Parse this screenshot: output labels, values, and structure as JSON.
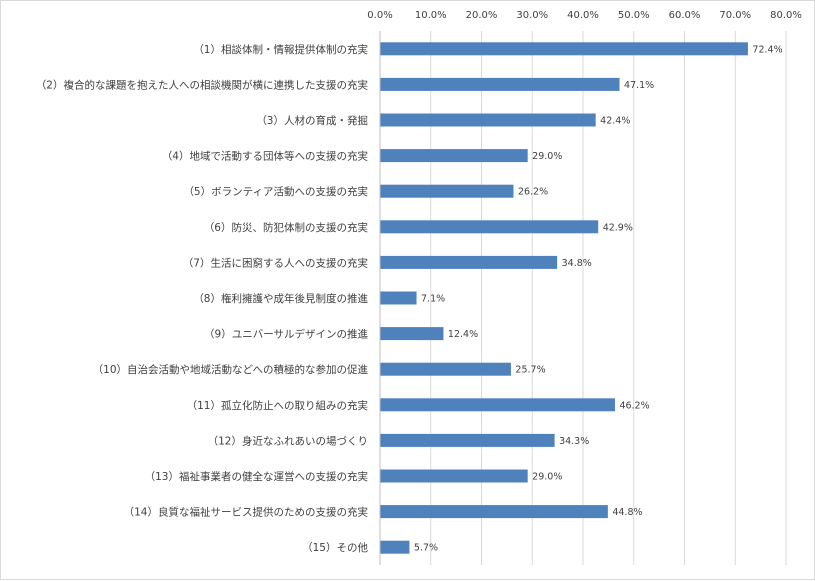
{
  "chart_data": {
    "type": "bar",
    "orientation": "horizontal",
    "categories": [
      "（1）相談体制・情報提供体制の充実",
      "（2）複合的な課題を抱えた人への相談機関が横に連携した支援の充実",
      "（3）人材の育成・発掘",
      "（4）地域で活動する団体等への支援の充実",
      "（5）ボランティア活動への支援の充実",
      "（6）防災、防犯体制の支援の充実",
      "（7）生活に困窮する人への支援の充実",
      "（8）権利擁護や成年後見制度の推進",
      "（9）ユニバーサルデザインの推進",
      "（10）自治会活動や地域活動などへの積極的な参加の促進",
      "（11）孤立化防止への取り組みの充実",
      "（12）身近なふれあいの場づくり",
      "（13）福祉事業者の健全な運営への支援の充実",
      "（14）良質な福祉サービス提供のための支援の充実",
      "（15）その他"
    ],
    "values": [
      72.4,
      47.1,
      42.4,
      29.0,
      26.2,
      42.9,
      34.8,
      7.1,
      12.4,
      25.7,
      46.2,
      34.3,
      29.0,
      44.8,
      5.7
    ],
    "data_labels": [
      "72.4%",
      "47.1%",
      "42.4%",
      "29.0%",
      "26.2%",
      "42.9%",
      "34.8%",
      "7.1%",
      "12.4%",
      "25.7%",
      "46.2%",
      "34.3%",
      "29.0%",
      "44.8%",
      "5.7%"
    ],
    "x_ticks": [
      "0.0%",
      "10.0%",
      "20.0%",
      "30.0%",
      "40.0%",
      "50.0%",
      "60.0%",
      "70.0%",
      "80.0%"
    ],
    "xlim": [
      0,
      80
    ],
    "axis_position": "top",
    "grid": true,
    "legend": false,
    "bar_color": "#4f81bd"
  }
}
